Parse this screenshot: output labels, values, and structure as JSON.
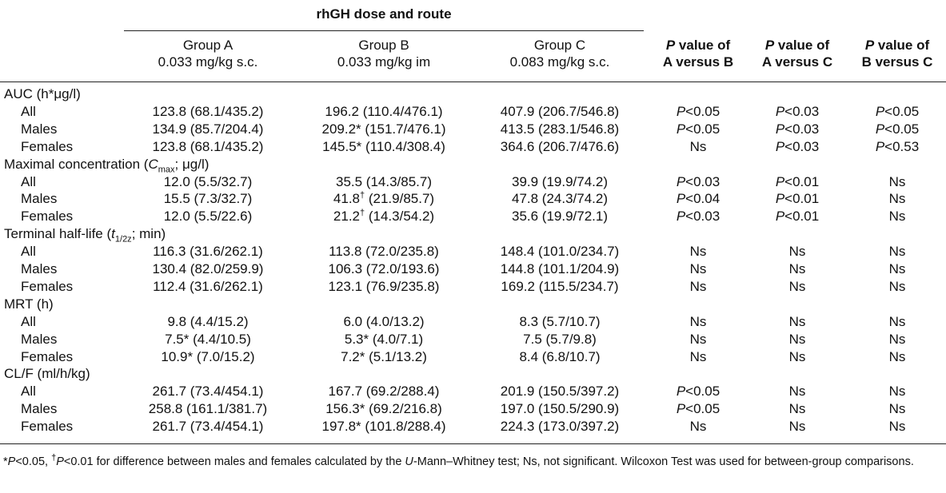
{
  "header": {
    "span_title": "rhGH dose and route",
    "columns": [
      {
        "line1": "Group A",
        "line2": "0.033 mg/kg s.c."
      },
      {
        "line1": "Group B",
        "line2": "0.033 mg/kg im"
      },
      {
        "line1": "Group C",
        "line2": "0.083 mg/kg s.c."
      },
      {
        "line1": "P value of",
        "line2": "A versus B"
      },
      {
        "line1": "P value of",
        "line2": "A versus C"
      },
      {
        "line1": "P value of",
        "line2": "B versus C"
      }
    ]
  },
  "sections": [
    {
      "label": [
        "AUC (h*μg/l)"
      ],
      "rows": [
        {
          "label": "All",
          "cells": [
            "123.8 (68.1/435.2)",
            "196.2 (110.4/476.1)",
            "407.9 (206.7/546.8)",
            "P<0.05",
            "P<0.03",
            "P<0.05"
          ]
        },
        {
          "label": "Males",
          "cells": [
            "134.9 (85.7/204.4)",
            "209.2* (151.7/476.1)",
            "413.5 (283.1/546.8)",
            "P<0.05",
            "P<0.03",
            "P<0.05"
          ]
        },
        {
          "label": "Females",
          "cells": [
            "123.8 (68.1/435.2)",
            "145.5* (110.4/308.4)",
            "364.6 (206.7/476.6)",
            "Ns",
            "P<0.03",
            "P<0.53"
          ]
        }
      ]
    },
    {
      "label": [
        "Maximal concentration (",
        "C",
        "max",
        "; μg/l)"
      ],
      "rows": [
        {
          "label": "All",
          "cells": [
            "12.0 (5.5/32.7)",
            "35.5 (14.3/85.7)",
            "39.9 (19.9/74.2)",
            "P<0.03",
            "P<0.01",
            "Ns"
          ]
        },
        {
          "label": "Males",
          "cells": [
            "15.5 (7.3/32.7)",
            "41.8† (21.9/85.7)",
            "47.8 (24.3/74.2)",
            "P<0.04",
            "P<0.01",
            "Ns"
          ]
        },
        {
          "label": "Females",
          "cells": [
            "12.0 (5.5/22.6)",
            "21.2† (14.3/54.2)",
            "35.6 (19.9/72.1)",
            "P<0.03",
            "P<0.01",
            "Ns"
          ]
        }
      ]
    },
    {
      "label": [
        "Terminal half-life (",
        "t",
        "1/2z",
        "; min)"
      ],
      "rows": [
        {
          "label": "All",
          "cells": [
            "116.3 (31.6/262.1)",
            "113.8 (72.0/235.8)",
            "148.4 (101.0/234.7)",
            "Ns",
            "Ns",
            "Ns"
          ]
        },
        {
          "label": "Males",
          "cells": [
            "130.4 (82.0/259.9)",
            "106.3 (72.0/193.6)",
            "144.8 (101.1/204.9)",
            "Ns",
            "Ns",
            "Ns"
          ]
        },
        {
          "label": "Females",
          "cells": [
            "112.4 (31.6/262.1)",
            "123.1 (76.9/235.8)",
            "169.2 (115.5/234.7)",
            "Ns",
            "Ns",
            "Ns"
          ]
        }
      ]
    },
    {
      "label": [
        "MRT (h)"
      ],
      "rows": [
        {
          "label": "All",
          "cells": [
            "9.8 (4.4/15.2)",
            "6.0 (4.0/13.2)",
            "8.3 (5.7/10.7)",
            "Ns",
            "Ns",
            "Ns"
          ]
        },
        {
          "label": "Males",
          "cells": [
            "7.5* (4.4/10.5)",
            "5.3* (4.0/7.1)",
            "7.5 (5.7/9.8)",
            "Ns",
            "Ns",
            "Ns"
          ]
        },
        {
          "label": "Females",
          "cells": [
            "10.9* (7.0/15.2)",
            "7.2* (5.1/13.2)",
            "8.4 (6.8/10.7)",
            "Ns",
            "Ns",
            "Ns"
          ]
        }
      ]
    },
    {
      "label": [
        "CL/F (ml/h/kg)"
      ],
      "rows": [
        {
          "label": "All",
          "cells": [
            "261.7 (73.4/454.1)",
            "167.7 (69.2/288.4)",
            "201.9 (150.5/397.2)",
            "P<0.05",
            "Ns",
            "Ns"
          ]
        },
        {
          "label": "Males",
          "cells": [
            "258.8 (161.1/381.7)",
            "156.3* (69.2/216.8)",
            "197.0 (150.5/290.9)",
            "P<0.05",
            "Ns",
            "Ns"
          ]
        },
        {
          "label": "Females",
          "cells": [
            "261.7 (73.4/454.1)",
            "197.8* (101.8/288.4)",
            "224.3 (173.0/397.2)",
            "Ns",
            "Ns",
            "Ns"
          ]
        }
      ]
    }
  ],
  "footnote": [
    "*",
    "P",
    "<0.05, ",
    "†",
    "P",
    "<0.01 for difference between males and females calculated by the ",
    "U",
    "-Mann–Whitney test; Ns, not significant. Wilcoxon Test was used for between-group comparisons."
  ]
}
